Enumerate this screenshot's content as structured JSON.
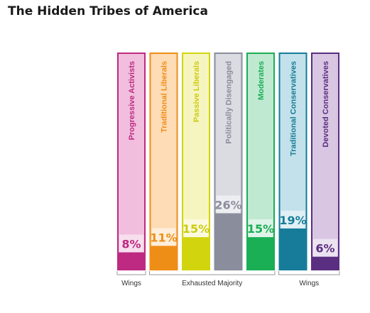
{
  "title": "The Hidden Tribes of America",
  "chart_data": {
    "type": "bar",
    "categories": [
      "Progressive Activists",
      "Traditional Liberals",
      "Passive Liberals",
      "Politically Disengaged",
      "Moderates",
      "Traditional Conservatives",
      "Devoted Conservatives"
    ],
    "values": [
      8,
      11,
      15,
      26,
      15,
      19,
      6
    ],
    "value_labels": [
      "8%",
      "11%",
      "15%",
      "26%",
      "15%",
      "19%",
      "6%"
    ],
    "colors": {
      "fill": [
        "#be2a82",
        "#ef8e17",
        "#d2d50e",
        "#8a8d9c",
        "#1aae55",
        "#167c99",
        "#5a2f82"
      ],
      "light": [
        "#f1bfdd",
        "#fddcb6",
        "#f6f5c0",
        "#dbdce2",
        "#bfe9d1",
        "#c3e1ea",
        "#d8c6e2"
      ],
      "text": [
        "#be2a82",
        "#ef8e17",
        "#cccb10",
        "#8a8d9c",
        "#1aae55",
        "#167c99",
        "#5a2f82"
      ]
    },
    "ylim": [
      0,
      100
    ],
    "groups": [
      {
        "label": "Wings",
        "from": 0,
        "to": 0
      },
      {
        "label": "Exhausted Majority",
        "from": 1,
        "to": 4
      },
      {
        "label": "Wings",
        "from": 5,
        "to": 6
      }
    ],
    "legend": "none",
    "grid": false
  }
}
